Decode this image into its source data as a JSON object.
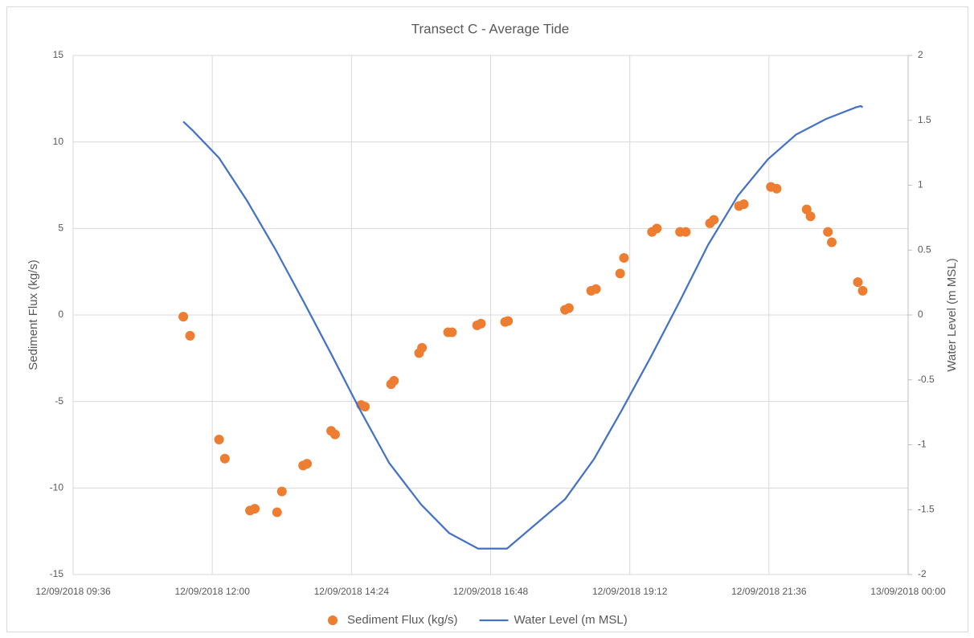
{
  "chart_data": {
    "type": "combo",
    "title": "Transect C - Average Tide",
    "y_label": "Sediment Flux (kg/s)",
    "y2_label": "Water Level (m MSL)",
    "xlim": [
      "2018-09-12T09:36",
      "2018-09-13T00:00"
    ],
    "xticks": [
      {
        "value": "2018-09-12T09:36",
        "label": "12/09/2018 09:36"
      },
      {
        "value": "2018-09-12T12:00",
        "label": "12/09/2018 12:00"
      },
      {
        "value": "2018-09-12T14:24",
        "label": "12/09/2018 14:24"
      },
      {
        "value": "2018-09-12T16:48",
        "label": "12/09/2018 16:48"
      },
      {
        "value": "2018-09-12T19:12",
        "label": "12/09/2018 19:12"
      },
      {
        "value": "2018-09-12T21:36",
        "label": "12/09/2018 21:36"
      },
      {
        "value": "2018-09-13T00:00",
        "label": "13/09/2018 00:00"
      }
    ],
    "ylim": [
      -15,
      15
    ],
    "yticks": [
      -15,
      -10,
      -5,
      0,
      5,
      10,
      15
    ],
    "y2lim": [
      -2,
      2
    ],
    "y2ticks": [
      -2,
      -1.5,
      -1,
      -0.5,
      0,
      0.5,
      1,
      1.5,
      2
    ],
    "grid": true,
    "legend": "bottom",
    "series": [
      {
        "name": "Sediment Flux (kg/s)",
        "type": "scatter",
        "color": "#ed7d31",
        "x": [
          "2018-09-12T11:30",
          "2018-09-12T11:37",
          "2018-09-12T12:07",
          "2018-09-12T12:13",
          "2018-09-12T12:39",
          "2018-09-12T12:44",
          "2018-09-12T13:07",
          "2018-09-12T13:12",
          "2018-09-12T13:34",
          "2018-09-12T13:38",
          "2018-09-12T14:03",
          "2018-09-12T14:07",
          "2018-09-12T14:34",
          "2018-09-12T14:38",
          "2018-09-12T15:05",
          "2018-09-12T15:08",
          "2018-09-12T15:34",
          "2018-09-12T15:37",
          "2018-09-12T16:04",
          "2018-09-12T16:08",
          "2018-09-12T16:34",
          "2018-09-12T16:38",
          "2018-09-12T17:03",
          "2018-09-12T17:06",
          "2018-09-12T18:05",
          "2018-09-12T18:09",
          "2018-09-12T18:32",
          "2018-09-12T18:37",
          "2018-09-12T19:02",
          "2018-09-12T19:06",
          "2018-09-12T19:35",
          "2018-09-12T19:40",
          "2018-09-12T20:04",
          "2018-09-12T20:10",
          "2018-09-12T20:35",
          "2018-09-12T20:39",
          "2018-09-12T21:05",
          "2018-09-12T21:10",
          "2018-09-12T21:38",
          "2018-09-12T21:44",
          "2018-09-12T22:15",
          "2018-09-12T22:19",
          "2018-09-12T22:37",
          "2018-09-12T22:41",
          "2018-09-12T23:08",
          "2018-09-12T23:13"
        ],
        "values": [
          -0.1,
          -1.2,
          -7.2,
          -8.3,
          -11.3,
          -11.2,
          -11.4,
          -10.2,
          -8.7,
          -8.6,
          -6.7,
          -6.9,
          -5.2,
          -5.3,
          -4.0,
          -3.8,
          -2.2,
          -1.9,
          -1.0,
          -1.0,
          -0.6,
          -0.5,
          -0.4,
          -0.35,
          0.3,
          0.4,
          1.4,
          1.5,
          2.4,
          3.3,
          4.8,
          5.0,
          4.8,
          4.8,
          5.3,
          5.5,
          6.3,
          6.4,
          7.4,
          7.3,
          6.1,
          5.7,
          4.8,
          4.2,
          1.9,
          1.4
        ]
      },
      {
        "name": "Water Level (m MSL)",
        "type": "line",
        "color": "#4472c4",
        "axis": "y2",
        "x": [
          "2018-09-12T11:30",
          "2018-09-12T11:40",
          "2018-09-12T12:07",
          "2018-09-12T12:36",
          "2018-09-12T13:05",
          "2018-09-12T13:34",
          "2018-09-12T14:03",
          "2018-09-12T14:32",
          "2018-09-12T15:03",
          "2018-09-12T15:36",
          "2018-09-12T16:05",
          "2018-09-12T16:35",
          "2018-09-12T17:05",
          "2018-09-12T18:05",
          "2018-09-12T18:35",
          "2018-09-12T19:04",
          "2018-09-12T19:34",
          "2018-09-12T20:04",
          "2018-09-12T20:33",
          "2018-09-12T21:04",
          "2018-09-12T21:35",
          "2018-09-12T22:04",
          "2018-09-12T22:35",
          "2018-09-12T23:06",
          "2018-09-12T23:11",
          "2018-09-12T23:13"
        ],
        "values": [
          1.49,
          1.42,
          1.21,
          0.88,
          0.51,
          0.11,
          -0.3,
          -0.72,
          -1.14,
          -1.46,
          -1.68,
          -1.8,
          -1.8,
          -1.42,
          -1.11,
          -0.73,
          -0.32,
          0.11,
          0.54,
          0.92,
          1.2,
          1.39,
          1.51,
          1.6,
          1.61,
          1.6
        ]
      }
    ]
  }
}
